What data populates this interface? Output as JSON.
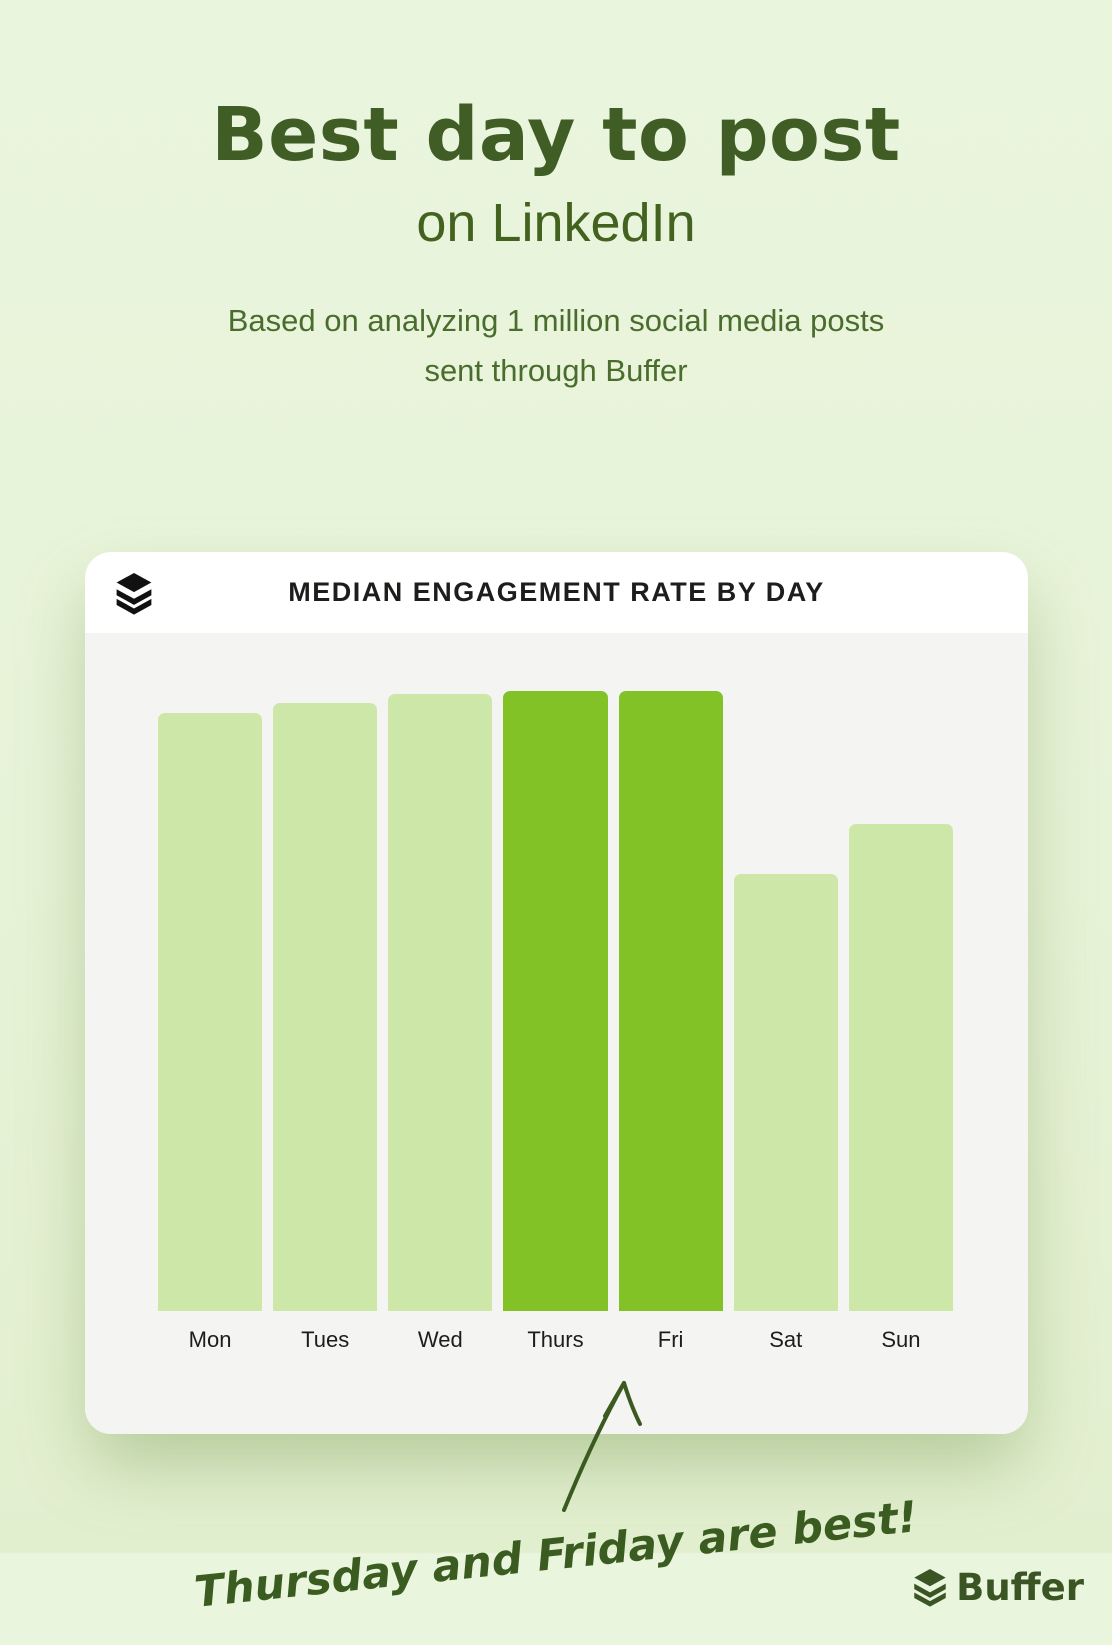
{
  "header": {
    "title": "Best day to post",
    "subtitle": "on LinkedIn",
    "description": "Based on analyzing 1 million social media posts sent through Buffer"
  },
  "card": {
    "title": "MEDIAN ENGAGEMENT RATE BY DAY"
  },
  "chart_data": {
    "type": "bar",
    "title": "MEDIAN ENGAGEMENT RATE BY DAY",
    "categories": [
      "Mon",
      "Tues",
      "Wed",
      "Thurs",
      "Fri",
      "Sat",
      "Sun"
    ],
    "values": [
      96.5,
      98,
      99.5,
      100,
      100,
      70.5,
      78.5
    ],
    "value_unit": "relative median engagement rate (% of max, no y-axis shown)",
    "highlighted_categories": [
      "Thurs",
      "Fri"
    ],
    "bar_color": "#cde7a9",
    "highlight_color": "#83c226",
    "plot_background": "#f4f4f2",
    "ylim": [
      0,
      100
    ],
    "grid": false,
    "legend": false,
    "xlabel": "",
    "ylabel": ""
  },
  "annotation": {
    "text": "Thursday and Friday are best!",
    "color": "#3b5c20"
  },
  "footer": {
    "brand": "Buffer"
  },
  "colors": {
    "page_background": "#e7f3d8",
    "title_green": "#3f5d25",
    "body_green": "#4a6d2d",
    "card_background": "#ffffff",
    "header_icon_black": "#111111"
  }
}
